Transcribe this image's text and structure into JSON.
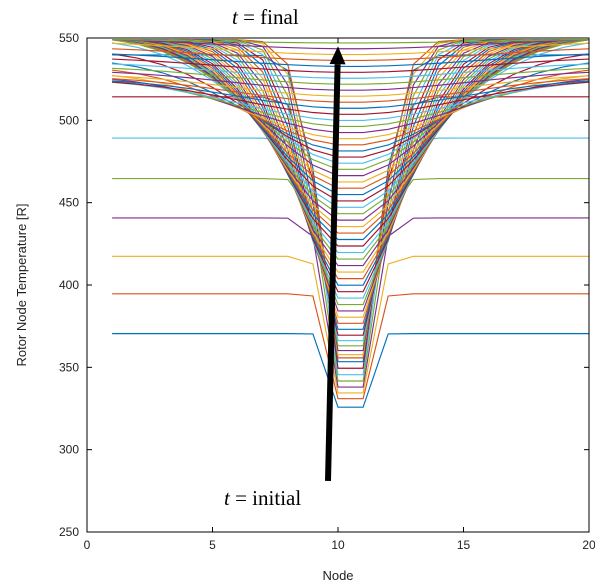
{
  "chart_data": {
    "type": "line",
    "title": "",
    "xlabel": "Node",
    "ylabel": "Rotor Node Temperature [R]",
    "xlim": [
      0,
      20
    ],
    "ylim": [
      250,
      550
    ],
    "xticks": [
      0,
      5,
      10,
      15,
      20
    ],
    "yticks": [
      250,
      300,
      350,
      400,
      450,
      500,
      550
    ],
    "grid": false,
    "legend": "none",
    "nodes": [
      1,
      2,
      3,
      4,
      5,
      6,
      7,
      8,
      9,
      10,
      11,
      12,
      13,
      14,
      15,
      16,
      17,
      18,
      19,
      20
    ],
    "series_description_values": {
      "initial_temperature": 281,
      "final_temperature": 549,
      "center_level_count": 61,
      "center_low": 281,
      "center_high": 547
    },
    "annotations": {
      "top": {
        "var": "t",
        "text": " = final"
      },
      "bottom": {
        "var": "t",
        "text": " = initial"
      },
      "arrow": {
        "from": [
          10,
          281
        ],
        "to": [
          10,
          545
        ]
      }
    },
    "colors": [
      "#0072BD",
      "#D95319",
      "#EDB120",
      "#7E2F8E",
      "#77AC30",
      "#4DBEEE",
      "#A2142F"
    ]
  }
}
